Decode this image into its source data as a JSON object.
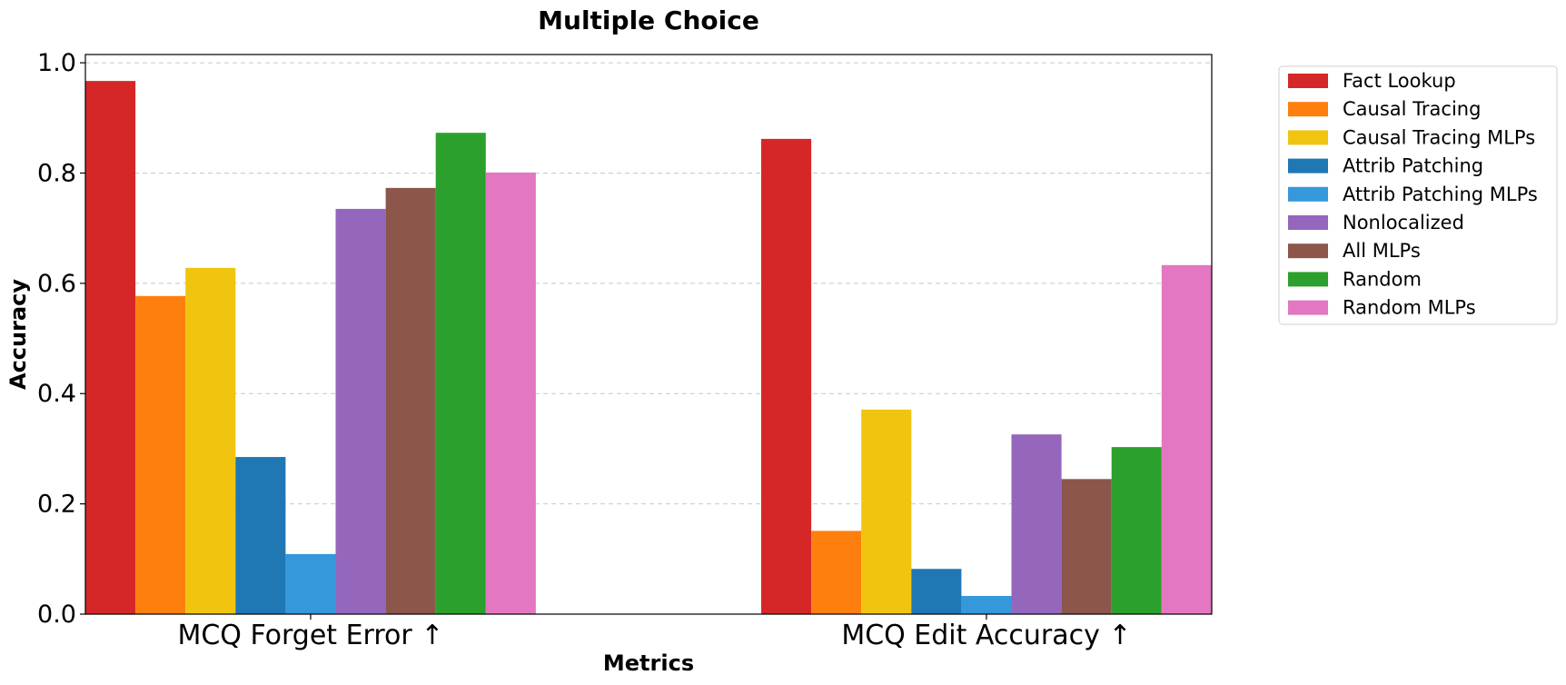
{
  "chart_data": {
    "type": "bar",
    "title": "Multiple Choice",
    "xlabel": "Metrics",
    "ylabel": "Accuracy",
    "categories": [
      "MCQ Forget Error ↑",
      "MCQ Edit Accuracy ↑"
    ],
    "ylim": [
      0,
      1.0
    ],
    "yticks": [
      "0.0",
      "0.2",
      "0.4",
      "0.6",
      "0.8",
      "1.0"
    ],
    "grid": true,
    "legend_position": "outside-right-top",
    "series": [
      {
        "name": "Fact Lookup",
        "color": "#d62728",
        "values": [
          0.967,
          0.862
        ]
      },
      {
        "name": "Causal Tracing",
        "color": "#ff7f0e",
        "values": [
          0.577,
          0.151
        ]
      },
      {
        "name": "Causal Tracing MLPs",
        "color": "#f1c40f",
        "values": [
          0.628,
          0.371
        ]
      },
      {
        "name": "Attrib Patching",
        "color": "#1f77b4",
        "values": [
          0.285,
          0.082
        ]
      },
      {
        "name": "Attrib Patching MLPs",
        "color": "#3498db",
        "values": [
          0.109,
          0.033
        ]
      },
      {
        "name": "Nonlocalized",
        "color": "#9467bd",
        "values": [
          0.735,
          0.326
        ]
      },
      {
        "name": "All MLPs",
        "color": "#8c564b",
        "values": [
          0.773,
          0.245
        ]
      },
      {
        "name": "Random",
        "color": "#2ca02c",
        "values": [
          0.873,
          0.303
        ]
      },
      {
        "name": "Random MLPs",
        "color": "#e377c2",
        "values": [
          0.801,
          0.633
        ]
      }
    ]
  }
}
